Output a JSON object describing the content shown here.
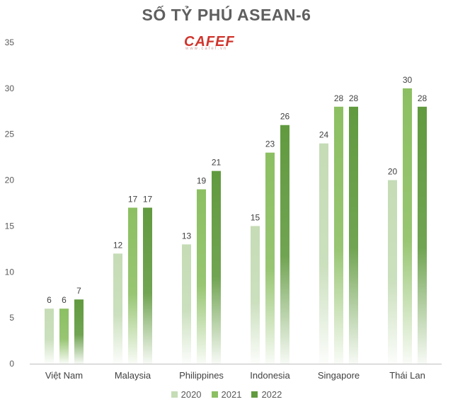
{
  "logo": {
    "brand": "CAFEF",
    "url": "www.cafef.vn"
  },
  "colors": {
    "2020": "#c5dcb6",
    "2021": "#8cbf62",
    "2022": "#619a3f",
    "grid": "#d9d9d9",
    "axis": "#bfbfbf"
  },
  "chart_data": {
    "type": "bar",
    "title": "SỐ TỶ PHÚ ASEAN-6",
    "categories": [
      "Việt Nam",
      "Malaysia",
      "Philippines",
      "Indonesia",
      "Singapore",
      "Thái Lan"
    ],
    "series": [
      {
        "name": "2020",
        "values": [
          6,
          12,
          13,
          15,
          24,
          20
        ]
      },
      {
        "name": "2021",
        "values": [
          6,
          17,
          19,
          23,
          28,
          30
        ]
      },
      {
        "name": "2022",
        "values": [
          7,
          17,
          21,
          26,
          28,
          28
        ]
      }
    ],
    "ylim": [
      0,
      35
    ],
    "yticks": [
      0,
      5,
      10,
      15,
      20,
      25,
      30,
      35
    ],
    "grid": false,
    "legend": "bottom"
  }
}
